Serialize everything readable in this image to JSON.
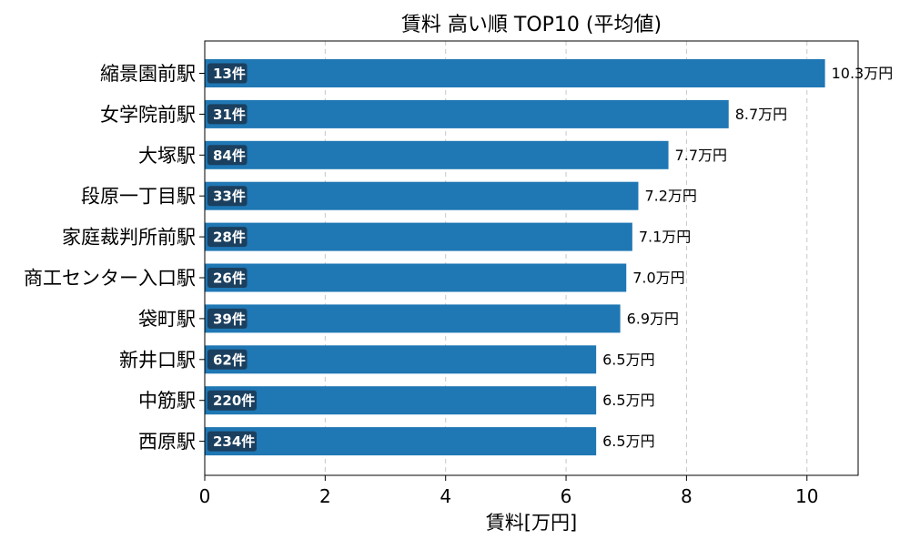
{
  "chart_data": {
    "type": "bar",
    "orientation": "horizontal",
    "title": "賃料 高い順 TOP10 (平均値)",
    "xlabel": "賃料[万円]",
    "ylabel": "",
    "xlim": [
      0,
      10.85
    ],
    "xticks": [
      "0",
      "2",
      "4",
      "6",
      "8",
      "10"
    ],
    "grid": "x-dashed",
    "bar_color": "#1f77b4",
    "badge_color": "#1b3f5e",
    "categories": [
      "縮景園前駅",
      "女学院前駅",
      "大塚駅",
      "段原一丁目駅",
      "家庭裁判所前駅",
      "商工センター入口駅",
      "袋町駅",
      "新井口駅",
      "中筋駅",
      "西原駅"
    ],
    "values": [
      10.3,
      8.7,
      7.7,
      7.2,
      7.1,
      7.0,
      6.9,
      6.5,
      6.5,
      6.5
    ],
    "value_labels": [
      "10.3万円",
      "8.7万円",
      "7.7万円",
      "7.2万円",
      "7.1万円",
      "7.0万円",
      "6.9万円",
      "6.5万円",
      "6.5万円",
      "6.5万円"
    ],
    "counts": [
      "13件",
      "31件",
      "84件",
      "33件",
      "28件",
      "26件",
      "39件",
      "62件",
      "220件",
      "234件"
    ]
  }
}
